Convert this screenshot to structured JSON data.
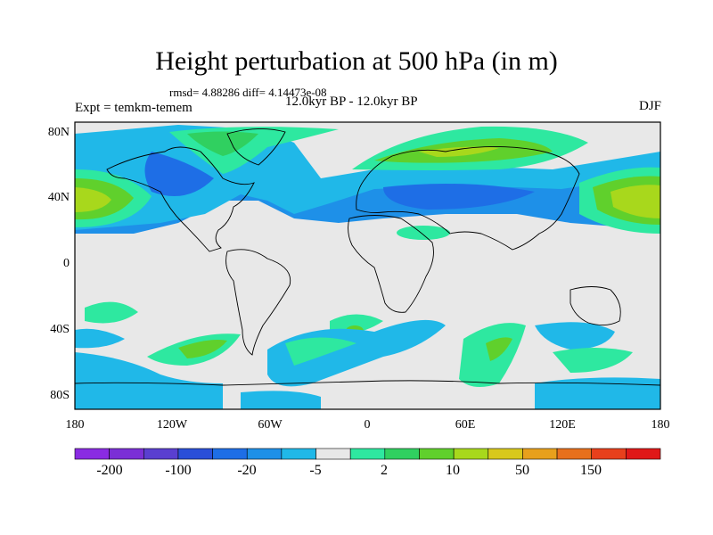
{
  "title": "Height perturbation at 500 hPa (in m)",
  "stats": "rmsd= 4.88286 diff= 4.14473e-08",
  "expt": "Expt = temkm-temem",
  "subtitle": "12.0kyr BP - 12.0kyr BP",
  "season": "DJF",
  "lat_labels": [
    "80N",
    "40N",
    "0",
    "40S",
    "80S"
  ],
  "lon_labels": [
    "180",
    "120W",
    "60W",
    "0",
    "60E",
    "120E",
    "180"
  ],
  "colorbar": {
    "colors": [
      "#8a2be2",
      "#7b2fd6",
      "#5a3fd0",
      "#2a4fd8",
      "#1e6ee6",
      "#1e90e8",
      "#20b8e8",
      "#e8e8e8",
      "#2ee8a0",
      "#30d060",
      "#60d02c",
      "#a8d81c",
      "#d8c81c",
      "#e8a01c",
      "#e8701c",
      "#e8401c",
      "#e01818"
    ],
    "labels": [
      "-200",
      "-100",
      "-20",
      "-5",
      "2",
      "10",
      "50",
      "150"
    ]
  }
}
